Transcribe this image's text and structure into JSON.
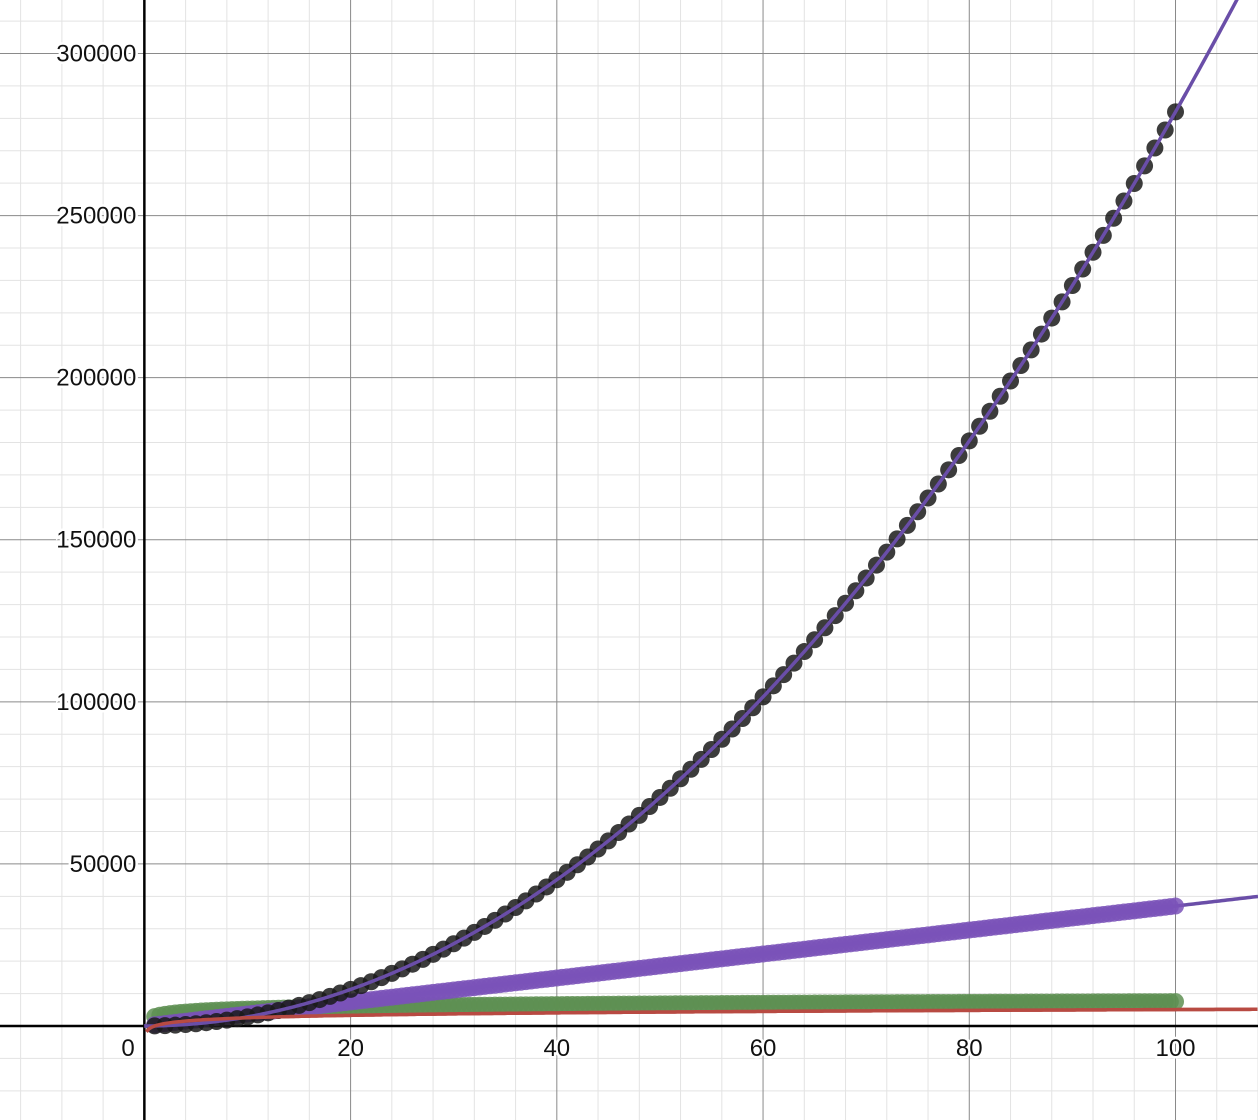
{
  "chart_data": {
    "type": "scatter",
    "xlim": [
      -14,
      108
    ],
    "ylim": [
      -29000,
      316500
    ],
    "grid": true,
    "x_ticks": [
      20,
      40,
      60,
      80,
      100
    ],
    "x_tick_labels": [
      "20",
      "40",
      "60",
      "80",
      "100"
    ],
    "y_ticks": [
      50000,
      100000,
      150000,
      200000,
      250000,
      300000
    ],
    "y_tick_labels": [
      "50000",
      "100000",
      "150000",
      "200000",
      "250000",
      "300000"
    ],
    "origin_label": "0",
    "series": [
      {
        "color": "#1a1a1a",
        "points": {
          "x_start": 1,
          "x_end": 100,
          "step": 1,
          "formula": "28.2*x^2"
        },
        "fit_curve": {
          "color": "#6a4ea8",
          "formula": "28.2*x^2"
        },
        "sample_values": {
          "x": [
            1,
            20,
            40,
            60,
            80,
            100
          ],
          "y": [
            28,
            11280,
            45120,
            101520,
            180480,
            282000
          ]
        }
      },
      {
        "color": "#7a52b8",
        "points": {
          "x_start": 1,
          "x_end": 100,
          "step": 0.5,
          "formula": "370*x"
        },
        "fit_curve": {
          "color": "#6a4ea8",
          "formula": "370*x"
        },
        "sample_values": {
          "x": [
            1,
            20,
            40,
            60,
            80,
            100
          ],
          "y": [
            370,
            7400,
            14800,
            22200,
            29600,
            37000
          ]
        }
      },
      {
        "color": "#5e8f52",
        "points": {
          "x_start": 1,
          "x_end": 100,
          "step": 0.5,
          "formula": "1000*ln(x)+2900"
        },
        "fit_curve": {
          "color": "#b84a42",
          "formula": "1100*ln(x)"
        },
        "sample_values": {
          "x": [
            1,
            20,
            40,
            60,
            80,
            100
          ],
          "y": [
            2900,
            5896,
            6589,
            6994,
            7282,
            7505
          ]
        }
      }
    ],
    "colors": {
      "minor_grid": "#e3e3e3",
      "major_grid": "#8a8a8a",
      "axis": "#000000"
    }
  }
}
